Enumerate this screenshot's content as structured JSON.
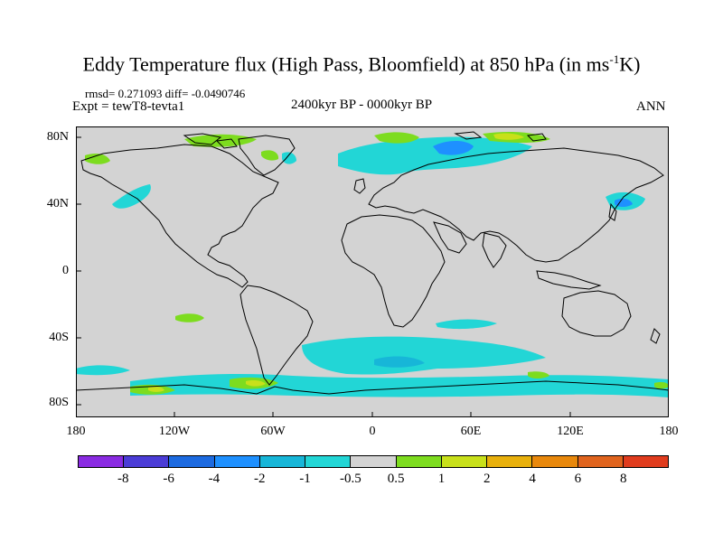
{
  "title": "Eddy Temperature flux (High Pass, Bloomfield) at 850 hPa (in ms",
  "title_sup": "-1",
  "title_end": "K)",
  "stats": "rmsd= 0.271093 diff= -0.0490746",
  "expt": "Expt = tewT8-tevta1",
  "period": "2400kyr BP - 0000kyr BP",
  "season": "ANN",
  "y_ticks": [
    "80N",
    "40N",
    "0",
    "40S",
    "80S"
  ],
  "x_ticks": [
    "180",
    "120W",
    "60W",
    "0",
    "60E",
    "120E",
    "180"
  ],
  "colorbar": {
    "labels": [
      "-8",
      "-6",
      "-4",
      "-2",
      "-1",
      "-0.5",
      "0.5",
      "1",
      "2",
      "4",
      "6",
      "8"
    ],
    "colors": [
      "#8a2be2",
      "#4b3cd6",
      "#1c6ae0",
      "#1e90ff",
      "#17b6d8",
      "#22d6d6",
      "#d3d3d3",
      "#7ddc1f",
      "#c8e01a",
      "#e8b00c",
      "#e8880c",
      "#e0641e",
      "#e03c1e"
    ]
  },
  "map_colors": {
    "background": "#d3d3d3",
    "coast": "#000000",
    "cyan": "#22d6d6",
    "light_blue": "#17b6d8",
    "blue": "#1e90ff",
    "green": "#7ddc1f",
    "yellow": "#c8e01a",
    "orange": "#e8b00c"
  }
}
